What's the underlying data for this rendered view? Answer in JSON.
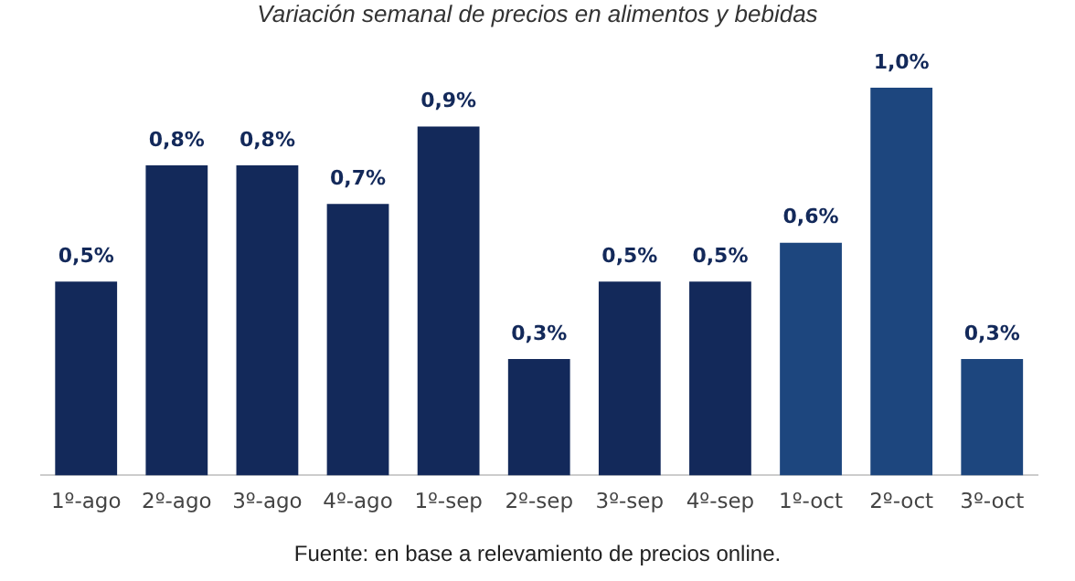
{
  "chart_data": {
    "type": "bar",
    "title": "Variación semanal de precios en alimentos y bebidas",
    "categories": [
      "1º-ago",
      "2º-ago",
      "3º-ago",
      "4º-ago",
      "1º-sep",
      "2º-sep",
      "3º-sep",
      "4º-sep",
      "1º-oct",
      "2º-oct",
      "3º-oct"
    ],
    "values": [
      0.5,
      0.8,
      0.8,
      0.7,
      0.9,
      0.3,
      0.5,
      0.5,
      0.6,
      1.0,
      0.3
    ],
    "value_labels": [
      "0,5%",
      "0,8%",
      "0,8%",
      "0,7%",
      "0,9%",
      "0,3%",
      "0,5%",
      "0,5%",
      "0,6%",
      "1,0%",
      "0,3%"
    ],
    "colors": [
      "#13295a",
      "#13295a",
      "#13295a",
      "#13295a",
      "#13295a",
      "#13295a",
      "#13295a",
      "#13295a",
      "#1d467e",
      "#1d467e",
      "#1d467e"
    ],
    "grid": false,
    "legend": false,
    "annotations": [
      "Fuente: en base a relevamiento de precios online."
    ]
  }
}
